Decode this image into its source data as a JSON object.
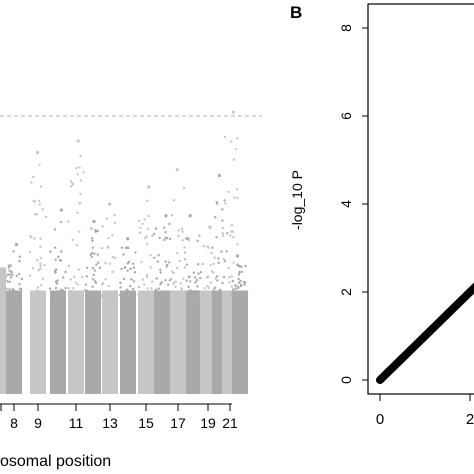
{
  "chart_data": [
    {
      "type": "scatter",
      "subtype": "manhattan",
      "title": "",
      "xlabel": "osomal position",
      "ylabel": "",
      "x_tick_labels": [
        "8",
        "9",
        "11",
        "13",
        "15",
        "17",
        "19",
        "21"
      ],
      "visible_chromosome_range": [
        7,
        22
      ],
      "significance_line": {
        "style": "dashed",
        "color": "#b5b5b5"
      },
      "chromosome_colors": [
        "#a9a9a9",
        "#c6c6c6"
      ],
      "peak_values": [
        {
          "chrom": 8,
          "value": 2.6
        },
        {
          "chrom": 9,
          "value": 4.2
        },
        {
          "chrom": 10,
          "value": 3.2
        },
        {
          "chrom": 11,
          "value": 4.4
        },
        {
          "chrom": 12,
          "value": 3.0
        },
        {
          "chrom": 13,
          "value": 3.3
        },
        {
          "chrom": 14,
          "value": 2.7
        },
        {
          "chrom": 15,
          "value": 3.6
        },
        {
          "chrom": 16,
          "value": 3.1
        },
        {
          "chrom": 17,
          "value": 3.9
        },
        {
          "chrom": 18,
          "value": 3.1
        },
        {
          "chrom": 19,
          "value": 2.9
        },
        {
          "chrom": 20,
          "value": 3.8
        },
        {
          "chrom": 21,
          "value": 4.9
        },
        {
          "chrom": 22,
          "value": 2.4
        }
      ]
    },
    {
      "type": "scatter",
      "subtype": "qq",
      "panel_label": "B",
      "title": "",
      "xlabel": "",
      "ylabel": "-log_10 P",
      "x_tick_labels": [
        "0",
        "2"
      ],
      "y_tick_labels": [
        "0",
        "2",
        "4",
        "6",
        "8"
      ],
      "xlim": [
        -0.3,
        2.6
      ],
      "ylim": [
        -0.3,
        8.6
      ],
      "series": [
        {
          "x": [
            0,
            0.5,
            1.0,
            1.5,
            2.0,
            2.4
          ],
          "y": [
            0,
            0.5,
            1.0,
            1.5,
            2.0,
            2.4
          ]
        }
      ],
      "colors": {
        "points": "#000000"
      }
    }
  ]
}
